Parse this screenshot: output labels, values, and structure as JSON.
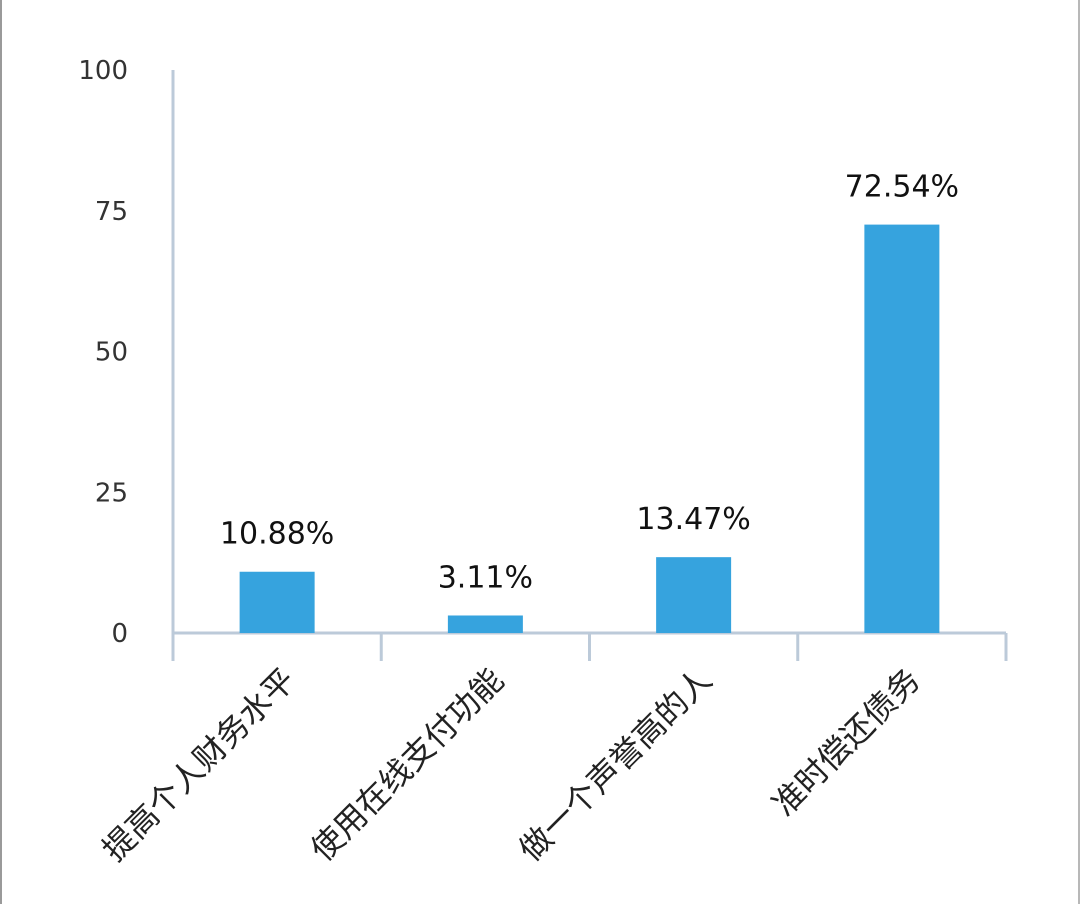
{
  "chart_data": {
    "type": "bar",
    "categories": [
      "提高个人财务水平",
      "使用在线支付功能",
      "做一个声誉高的人",
      "准时偿还债务"
    ],
    "values": [
      10.88,
      3.11,
      13.47,
      72.54
    ],
    "data_labels": [
      "10.88%",
      "3.11%",
      "13.47%",
      "72.54%"
    ],
    "yticks": [
      0,
      25,
      50,
      75,
      100
    ],
    "ylim": [
      0,
      100
    ],
    "title": "",
    "xlabel": "",
    "ylabel": "",
    "grid": false,
    "legend": "none",
    "bar_color": "#36a3de",
    "axis_color": "#bccad9"
  }
}
